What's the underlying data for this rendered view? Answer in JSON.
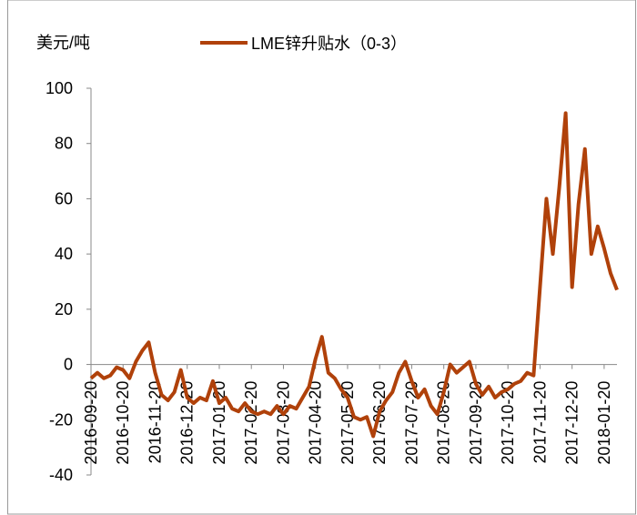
{
  "chart_data": {
    "type": "line",
    "y_label": "美元/吨",
    "categories": [
      "2016-09-20",
      null,
      null,
      null,
      null,
      "2016-10-20",
      null,
      null,
      null,
      null,
      "2016-11-20",
      null,
      null,
      null,
      null,
      "2016-12-20",
      null,
      null,
      null,
      null,
      "2017-01-20",
      null,
      null,
      null,
      null,
      "2017-02-20",
      null,
      null,
      null,
      null,
      "2017-03-20",
      null,
      null,
      null,
      null,
      "2017-04-20",
      null,
      null,
      null,
      null,
      "2017-05-20",
      null,
      null,
      null,
      null,
      "2017-06-20",
      null,
      null,
      null,
      null,
      "2017-07-20",
      null,
      null,
      null,
      null,
      "2017-08-20",
      null,
      null,
      null,
      null,
      "2017-09-20",
      null,
      null,
      null,
      null,
      "2017-10-20",
      null,
      null,
      null,
      null,
      "2017-11-20",
      null,
      null,
      null,
      null,
      "2017-12-20",
      null,
      null,
      null,
      null,
      "2018-01-20",
      null,
      null
    ],
    "series": [
      {
        "name": "LME锌升贴水（0-3）",
        "color": "#b0410a",
        "values": [
          -5,
          -3,
          -5,
          -4,
          -1,
          -2,
          -5,
          1,
          5,
          8,
          -3,
          -11,
          -13,
          -10,
          -2,
          -12,
          -14,
          -12,
          -13,
          -6,
          -14,
          -12,
          -16,
          -17,
          -14,
          -17,
          -18,
          -17,
          -18,
          -15,
          -18,
          -15,
          -16,
          -12,
          -8,
          2,
          10,
          -3,
          -5,
          -9,
          -12,
          -19,
          -20,
          -19,
          -26,
          -17,
          -13,
          -10,
          -3,
          1,
          -6,
          -12,
          -9,
          -15,
          -18,
          -10,
          0,
          -3,
          -1,
          1,
          -7,
          -11,
          -8,
          -12,
          -10,
          -9,
          -7,
          -6,
          -3,
          -4,
          28,
          60,
          40,
          64,
          91,
          28,
          58,
          78,
          40,
          50,
          42,
          33,
          27
        ]
      }
    ],
    "ylim": [
      -40,
      100
    ],
    "yticks": [
      -40,
      -20,
      0,
      20,
      40,
      60,
      80,
      100
    ],
    "legend": "top"
  }
}
